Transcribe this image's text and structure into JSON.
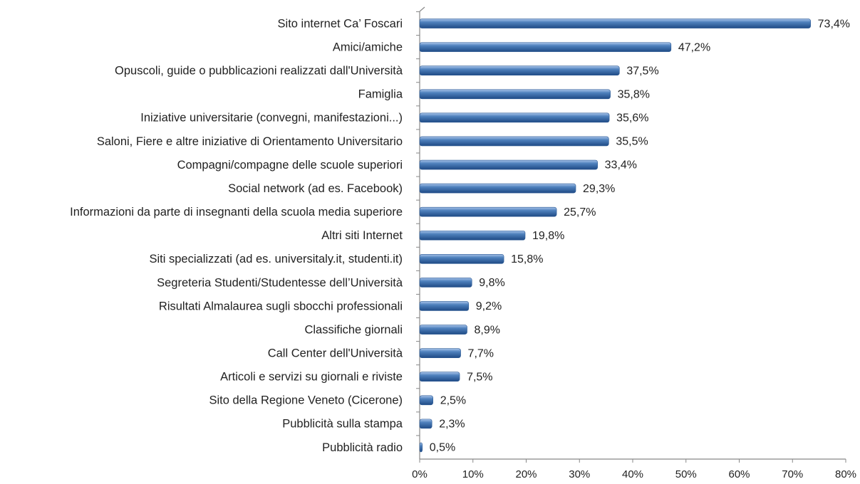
{
  "chart_data": {
    "type": "bar",
    "orientation": "horizontal",
    "categories": [
      "Sito internet Ca’ Foscari",
      "Amici/amiche",
      "Opuscoli, guide o pubblicazioni realizzati dall'Università",
      "Famiglia",
      "Iniziative universitarie (convegni, manifestazioni...)",
      "Saloni, Fiere e altre iniziative di Orientamento Universitario",
      "Compagni/compagne delle scuole superiori",
      "Social network (ad es. Facebook)",
      "Informazioni da parte di insegnanti della scuola media superiore",
      "Altri siti Internet",
      "Siti specializzati (ad es. universitaly.it, studenti.it)",
      "Segreteria Studenti/Studentesse dell’Università",
      "Risultati Almalaurea sugli sbocchi professionali",
      "Classifiche giornali",
      "Call Center dell'Università",
      "Articoli e servizi su giornali e riviste",
      "Sito della Regione Veneto (Cicerone)",
      "Pubblicità sulla stampa",
      "Pubblicità radio"
    ],
    "values": [
      73.4,
      47.2,
      37.5,
      35.8,
      35.6,
      35.5,
      33.4,
      29.3,
      25.7,
      19.8,
      15.8,
      9.8,
      9.2,
      8.9,
      7.7,
      7.5,
      2.5,
      2.3,
      0.5
    ],
    "value_labels": [
      "73,4%",
      "47,2%",
      "37,5%",
      "35,8%",
      "35,6%",
      "35,5%",
      "33,4%",
      "29,3%",
      "25,7%",
      "19,8%",
      "15,8%",
      "9,8%",
      "9,2%",
      "8,9%",
      "7,7%",
      "7,5%",
      "2,5%",
      "2,3%",
      "0,5%"
    ],
    "color": "#4f81bd",
    "xlim": [
      0,
      80
    ],
    "xticks": [
      {
        "value": 0,
        "label": "0%"
      },
      {
        "value": 10,
        "label": "10%"
      },
      {
        "value": 20,
        "label": "20%"
      },
      {
        "value": 30,
        "label": "30%"
      },
      {
        "value": 40,
        "label": "40%"
      },
      {
        "value": 50,
        "label": "50%"
      },
      {
        "value": 60,
        "label": "60%"
      },
      {
        "value": 70,
        "label": "70%"
      },
      {
        "value": 80,
        "label": "80%"
      }
    ],
    "grid": false
  }
}
